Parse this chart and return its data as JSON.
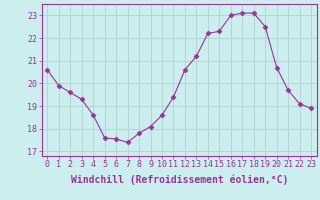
{
  "x": [
    0,
    1,
    2,
    3,
    4,
    5,
    6,
    7,
    8,
    9,
    10,
    11,
    12,
    13,
    14,
    15,
    16,
    17,
    18,
    19,
    20,
    21,
    22,
    23
  ],
  "y": [
    20.6,
    19.9,
    19.6,
    19.3,
    18.6,
    17.6,
    17.55,
    17.4,
    17.8,
    18.1,
    18.6,
    19.4,
    20.6,
    21.2,
    22.2,
    22.3,
    23.0,
    23.1,
    23.1,
    22.5,
    20.7,
    19.7,
    19.1,
    18.9
  ],
  "line_color": "#993399",
  "marker": "D",
  "marker_size": 2.5,
  "bg_color": "#cceeee",
  "grid_color": "#aacccc",
  "xlabel": "Windchill (Refroidissement éolien,°C)",
  "xlim": [
    -0.5,
    23.5
  ],
  "ylim": [
    16.8,
    23.5
  ],
  "yticks": [
    17,
    18,
    19,
    20,
    21,
    22,
    23
  ],
  "xticks": [
    0,
    1,
    2,
    3,
    4,
    5,
    6,
    7,
    8,
    9,
    10,
    11,
    12,
    13,
    14,
    15,
    16,
    17,
    18,
    19,
    20,
    21,
    22,
    23
  ],
  "tick_color": "#993399",
  "label_color": "#993399",
  "tick_fontsize": 6,
  "xlabel_fontsize": 7
}
